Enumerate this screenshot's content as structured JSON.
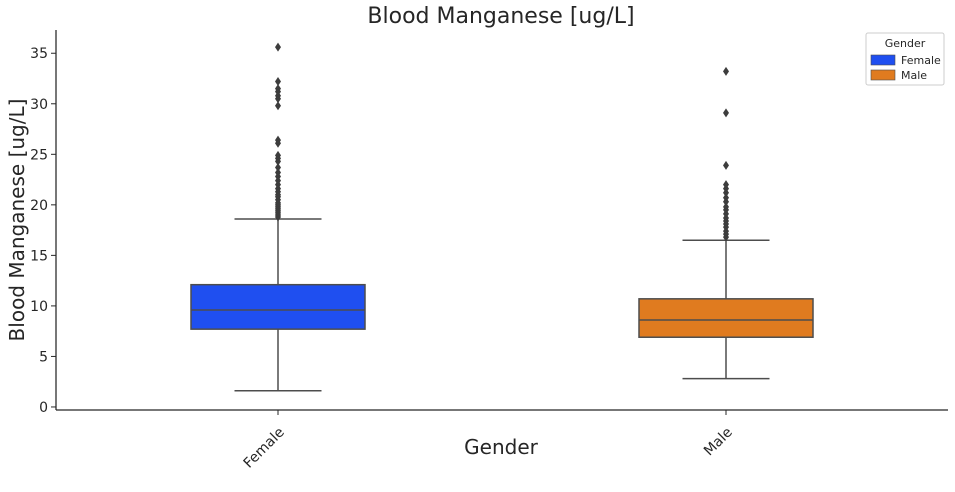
{
  "chart_data": {
    "type": "box",
    "title": "Blood Manganese [ug/L]",
    "xlabel": "Gender",
    "ylabel": "Blood Manganese [ug/L]",
    "ylim": [
      -0.3,
      37.3
    ],
    "yticks": [
      0,
      5,
      10,
      15,
      20,
      25,
      30,
      35
    ],
    "categories": [
      "Female",
      "Male"
    ],
    "grid": false,
    "legend": {
      "title": "Gender",
      "placement": "top-right",
      "entries": [
        {
          "label": "Female",
          "color": "#1f4ff0"
        },
        {
          "label": "Male",
          "color": "#e07b1f"
        }
      ]
    },
    "series": [
      {
        "category": "Female",
        "color": "#1f4ff0",
        "whisker_low": 1.6,
        "q1": 7.7,
        "median": 9.6,
        "q3": 12.1,
        "whisker_high": 18.6,
        "outliers": [
          18.8,
          19.0,
          19.2,
          19.4,
          19.6,
          19.8,
          20.0,
          20.2,
          20.5,
          20.8,
          21.0,
          21.3,
          21.6,
          22.0,
          22.4,
          22.8,
          23.2,
          23.7,
          24.3,
          24.6,
          24.9,
          26.1,
          26.4,
          29.8,
          30.5,
          30.8,
          31.2,
          31.5,
          32.2,
          35.6
        ]
      },
      {
        "category": "Male",
        "color": "#e07b1f",
        "whisker_low": 2.8,
        "q1": 6.9,
        "median": 8.6,
        "q3": 10.7,
        "whisker_high": 16.5,
        "outliers": [
          16.8,
          17.1,
          17.4,
          17.8,
          18.1,
          18.4,
          18.7,
          19.1,
          19.5,
          19.8,
          20.3,
          20.7,
          21.2,
          21.6,
          22.0,
          23.9,
          29.1,
          33.2
        ]
      }
    ]
  }
}
